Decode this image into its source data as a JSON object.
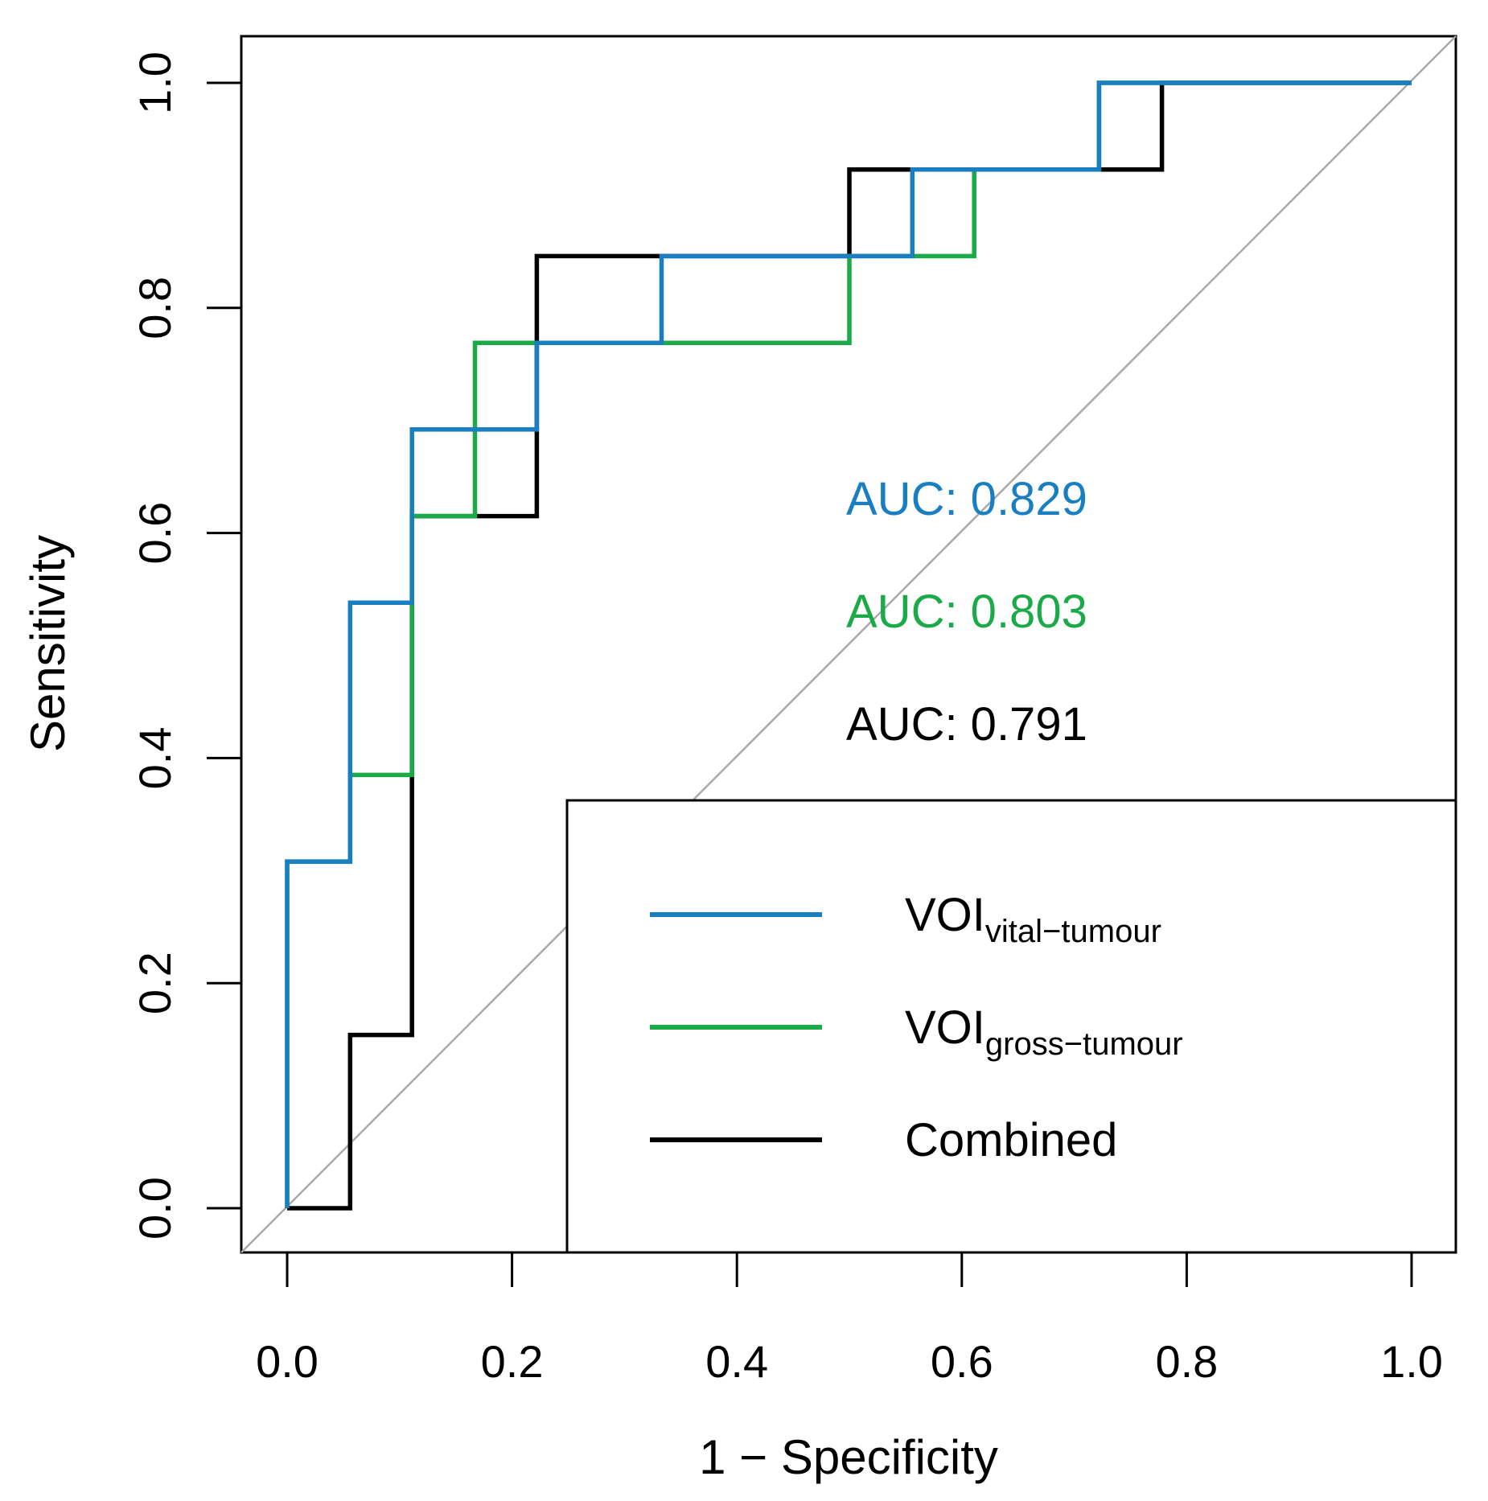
{
  "chart_data": {
    "type": "line",
    "xlabel": "1 − Specificity",
    "ylabel": "Sensitivity",
    "xlim": [
      0.0,
      1.0
    ],
    "ylim": [
      0.0,
      1.0
    ],
    "x_ticks": [
      "0.0",
      "0.2",
      "0.4",
      "0.6",
      "0.8",
      "1.0"
    ],
    "y_ticks": [
      "0.0",
      "0.2",
      "0.4",
      "0.6",
      "0.8",
      "1.0"
    ],
    "grid": false,
    "diagonal_reference": true,
    "legend_position": "bottom-right",
    "series": [
      {
        "key": "combined",
        "name": "Combined",
        "name_main": "Combined",
        "name_sub": "",
        "color": "#000000",
        "auc_label": "AUC: 0.791",
        "points": [
          [
            0,
            0
          ],
          [
            0.056,
            0
          ],
          [
            0.056,
            0.154
          ],
          [
            0.111,
            0.154
          ],
          [
            0.111,
            0.385
          ],
          [
            0.111,
            0.615
          ],
          [
            0.222,
            0.615
          ],
          [
            0.222,
            0.846
          ],
          [
            0.333,
            0.846
          ],
          [
            0.5,
            0.846
          ],
          [
            0.5,
            0.923
          ],
          [
            0.556,
            0.923
          ],
          [
            0.778,
            0.923
          ],
          [
            0.778,
            1.0
          ],
          [
            1.0,
            1.0
          ]
        ]
      },
      {
        "key": "gross",
        "name": "VOIgross-tumour",
        "name_main": "VOI",
        "name_sub": "gross−tumour",
        "color": "#1aaa48",
        "auc_label": "AUC: 0.803",
        "points": [
          [
            0,
            0
          ],
          [
            0,
            0.308
          ],
          [
            0.056,
            0.308
          ],
          [
            0.056,
            0.385
          ],
          [
            0.111,
            0.385
          ],
          [
            0.111,
            0.615
          ],
          [
            0.167,
            0.615
          ],
          [
            0.167,
            0.769
          ],
          [
            0.5,
            0.769
          ],
          [
            0.5,
            0.846
          ],
          [
            0.611,
            0.846
          ],
          [
            0.611,
            0.923
          ],
          [
            0.722,
            0.923
          ],
          [
            0.722,
            1.0
          ],
          [
            1.0,
            1.0
          ]
        ]
      },
      {
        "key": "vital",
        "name": "VOIvital-tumour",
        "name_main": "VOI",
        "name_sub": "vital−tumour",
        "color": "#1a7fc1",
        "auc_label": "AUC: 0.829",
        "points": [
          [
            0,
            0
          ],
          [
            0,
            0.308
          ],
          [
            0.056,
            0.308
          ],
          [
            0.056,
            0.538
          ],
          [
            0.111,
            0.538
          ],
          [
            0.111,
            0.692
          ],
          [
            0.222,
            0.692
          ],
          [
            0.222,
            0.769
          ],
          [
            0.333,
            0.769
          ],
          [
            0.333,
            0.846
          ],
          [
            0.556,
            0.846
          ],
          [
            0.556,
            0.923
          ],
          [
            0.722,
            0.923
          ],
          [
            0.722,
            1.0
          ],
          [
            1.0,
            1.0
          ]
        ]
      }
    ],
    "legend_order": [
      "vital",
      "gross",
      "combined"
    ],
    "auc_order": [
      "vital",
      "gross",
      "combined"
    ]
  }
}
